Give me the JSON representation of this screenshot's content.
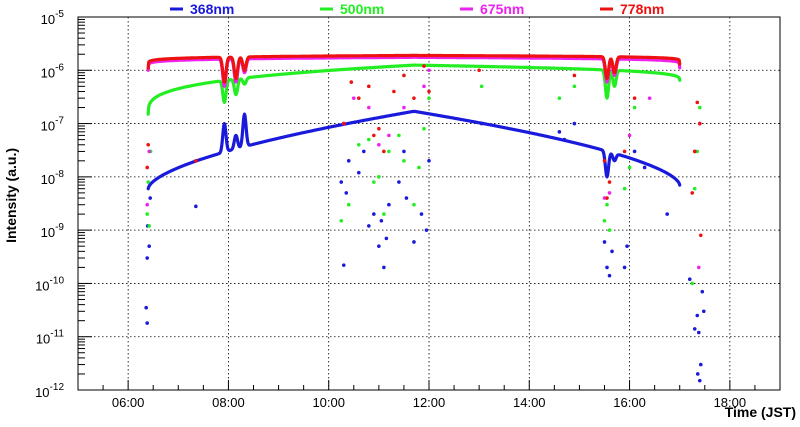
{
  "chart_data": {
    "type": "scatter",
    "xlabel": "Time (JST)",
    "ylabel": "Intensity (a.u.)",
    "x_unit": "hours (JST)",
    "xlim": [
      5.0,
      19.0
    ],
    "ylim": [
      1e-12,
      1e-05
    ],
    "yscale": "log",
    "grid": true,
    "legend_position": "top",
    "x_ticks": [
      {
        "value": 6,
        "label": "06:00"
      },
      {
        "value": 8,
        "label": "08:00"
      },
      {
        "value": 10,
        "label": "10:00"
      },
      {
        "value": 12,
        "label": "12:00"
      },
      {
        "value": 14,
        "label": "14:00"
      },
      {
        "value": 16,
        "label": "16:00"
      },
      {
        "value": 18,
        "label": "18:00"
      }
    ],
    "y_ticks": [
      {
        "exp": -12,
        "label": "10",
        "sup": "-12"
      },
      {
        "exp": -11,
        "label": "10",
        "sup": "-11"
      },
      {
        "exp": -10,
        "label": "10",
        "sup": "-10"
      },
      {
        "exp": -9,
        "label": "10",
        "sup": "-9"
      },
      {
        "exp": -8,
        "label": "10",
        "sup": "-8"
      },
      {
        "exp": -7,
        "label": "10",
        "sup": "-7"
      },
      {
        "exp": -6,
        "label": "10",
        "sup": "-6"
      },
      {
        "exp": -5,
        "label": "10",
        "sup": "-5"
      }
    ],
    "curve_time_range": [
      6.4,
      17.0
    ],
    "curve_peak_time": 11.7,
    "series": [
      {
        "name": "368nm",
        "color": "#1a1adc",
        "peak": 1.7e-07,
        "sunrise_value": 6e-09,
        "sunset_value": 7e-09,
        "shape": 0.6,
        "dips": [
          [
            7.92,
            1e-07
          ],
          [
            8.15,
            6e-08
          ],
          [
            8.32,
            1.5e-07
          ],
          [
            15.55,
            1e-08
          ],
          [
            15.7,
            2e-08
          ]
        ],
        "scatter": [
          [
            6.38,
            1.8e-11
          ],
          [
            6.36,
            3.5e-11
          ],
          [
            6.38,
            3e-10
          ],
          [
            6.39,
            1.2e-09
          ],
          [
            6.42,
            5e-10
          ],
          [
            6.44,
            4e-09
          ],
          [
            7.35,
            2.8e-09
          ],
          [
            10.3,
            2.2e-10
          ],
          [
            10.25,
            8e-09
          ],
          [
            10.35,
            5e-09
          ],
          [
            10.4,
            2e-08
          ],
          [
            10.6,
            1.2e-08
          ],
          [
            10.7,
            3e-08
          ],
          [
            10.8,
            1.2e-09
          ],
          [
            10.9,
            2e-09
          ],
          [
            11.0,
            5e-10
          ],
          [
            11.05,
            1.5e-09
          ],
          [
            11.1,
            2e-10
          ],
          [
            11.15,
            7e-10
          ],
          [
            11.2,
            3e-09
          ],
          [
            11.4,
            8e-09
          ],
          [
            11.5,
            3e-08
          ],
          [
            11.55,
            4e-09
          ],
          [
            11.7,
            6e-10
          ],
          [
            11.85,
            2e-09
          ],
          [
            11.95,
            1e-09
          ],
          [
            12.0,
            2e-08
          ],
          [
            13.05,
            1e-07
          ],
          [
            14.6,
            7e-08
          ],
          [
            14.7,
            5e-08
          ],
          [
            14.9,
            1e-07
          ],
          [
            15.5,
            6e-10
          ],
          [
            15.55,
            2e-10
          ],
          [
            15.6,
            1.4e-10
          ],
          [
            15.65,
            4e-10
          ],
          [
            15.9,
            2e-10
          ],
          [
            15.95,
            5e-10
          ],
          [
            16.1,
            3e-08
          ],
          [
            16.3,
            1.5e-08
          ],
          [
            16.75,
            2e-09
          ],
          [
            17.2,
            1.2e-10
          ],
          [
            17.3,
            1.4e-11
          ],
          [
            17.35,
            2.5e-11
          ],
          [
            17.38,
            1.2e-11
          ],
          [
            17.36,
            2e-12
          ],
          [
            17.4,
            1.5e-12
          ],
          [
            17.42,
            3e-12
          ],
          [
            17.45,
            7e-11
          ],
          [
            17.48,
            3e-11
          ]
        ]
      },
      {
        "name": "500nm",
        "color": "#22ee22",
        "peak": 1.25e-06,
        "sunrise_value": 1.5e-07,
        "sunset_value": 6.5e-07,
        "shape": 0.3,
        "dips": [
          [
            7.92,
            2.5e-07
          ],
          [
            8.15,
            3.5e-07
          ],
          [
            8.32,
            5.5e-07
          ],
          [
            15.55,
            3e-07
          ],
          [
            15.7,
            5e-07
          ]
        ],
        "scatter": [
          [
            6.38,
            2e-09
          ],
          [
            6.4,
            8e-09
          ],
          [
            6.42,
            1.2e-09
          ],
          [
            6.45,
            3e-08
          ],
          [
            10.25,
            1.5e-09
          ],
          [
            10.4,
            3e-09
          ],
          [
            10.6,
            4e-08
          ],
          [
            10.8,
            5e-08
          ],
          [
            10.9,
            8e-09
          ],
          [
            11.0,
            1e-08
          ],
          [
            11.1,
            2e-09
          ],
          [
            11.2,
            3e-08
          ],
          [
            11.4,
            6e-08
          ],
          [
            11.5,
            2e-08
          ],
          [
            11.7,
            3e-09
          ],
          [
            11.8,
            1.5e-08
          ],
          [
            11.9,
            8e-08
          ],
          [
            12.0,
            3e-07
          ],
          [
            13.05,
            5e-07
          ],
          [
            14.6,
            3e-07
          ],
          [
            14.9,
            5e-07
          ],
          [
            15.5,
            1.5e-09
          ],
          [
            15.55,
            3e-09
          ],
          [
            15.6,
            1e-09
          ],
          [
            15.9,
            6e-09
          ],
          [
            16.0,
            1.5e-08
          ],
          [
            16.1,
            2e-07
          ],
          [
            17.25,
            1e-10
          ],
          [
            17.3,
            6e-09
          ],
          [
            17.35,
            3e-08
          ],
          [
            17.4,
            2e-07
          ]
        ]
      },
      {
        "name": "675nm",
        "color": "#ee22ee",
        "peak": 1.75e-06,
        "sunrise_value": 1e-06,
        "sunset_value": 1.1e-06,
        "shape": 0.12,
        "dips": [
          [
            7.92,
            5e-07
          ],
          [
            8.15,
            6e-07
          ],
          [
            8.32,
            9e-07
          ],
          [
            15.55,
            6e-07
          ],
          [
            15.7,
            8e-07
          ]
        ],
        "scatter": [
          [
            6.38,
            3e-09
          ],
          [
            6.42,
            3e-08
          ],
          [
            10.3,
            1e-07
          ],
          [
            10.5,
            3e-07
          ],
          [
            10.8,
            2e-07
          ],
          [
            11.0,
            4e-08
          ],
          [
            11.2,
            6e-08
          ],
          [
            11.5,
            2e-07
          ],
          [
            11.9,
            5e-07
          ],
          [
            12.0,
            1e-06
          ],
          [
            15.5,
            4e-09
          ],
          [
            15.6,
            5e-09
          ],
          [
            16.0,
            6e-08
          ],
          [
            16.4,
            3e-07
          ],
          [
            17.3,
            3e-08
          ],
          [
            17.4,
            1e-07
          ],
          [
            17.38,
            2e-10
          ]
        ]
      },
      {
        "name": "778nm",
        "color": "#ee1111",
        "peak": 1.9e-06,
        "sunrise_value": 1.1e-06,
        "sunset_value": 1.3e-06,
        "shape": 0.12,
        "dips": [
          [
            7.92,
            6e-07
          ],
          [
            8.15,
            7e-07
          ],
          [
            8.32,
            1e-06
          ],
          [
            15.55,
            7e-07
          ],
          [
            15.7,
            9e-07
          ]
        ],
        "scatter": [
          [
            6.38,
            1.5e-08
          ],
          [
            6.4,
            4e-08
          ],
          [
            7.35,
            2e-08
          ],
          [
            10.3,
            1e-07
          ],
          [
            10.45,
            6e-07
          ],
          [
            10.6,
            3e-07
          ],
          [
            10.8,
            5e-07
          ],
          [
            10.9,
            6e-08
          ],
          [
            11.0,
            8e-08
          ],
          [
            11.1,
            3e-08
          ],
          [
            11.3,
            4e-07
          ],
          [
            11.5,
            8e-07
          ],
          [
            11.7,
            3e-07
          ],
          [
            11.9,
            1.2e-06
          ],
          [
            12.0,
            4e-07
          ],
          [
            13.0,
            1e-06
          ],
          [
            14.9,
            8e-07
          ],
          [
            15.5,
            2e-08
          ],
          [
            15.55,
            4e-09
          ],
          [
            15.6,
            8e-09
          ],
          [
            15.9,
            3e-08
          ],
          [
            16.1,
            3e-07
          ],
          [
            17.25,
            5e-09
          ],
          [
            17.3,
            3e-08
          ],
          [
            17.35,
            2.5e-07
          ],
          [
            17.4,
            1e-07
          ],
          [
            17.42,
            8e-10
          ]
        ]
      }
    ]
  }
}
